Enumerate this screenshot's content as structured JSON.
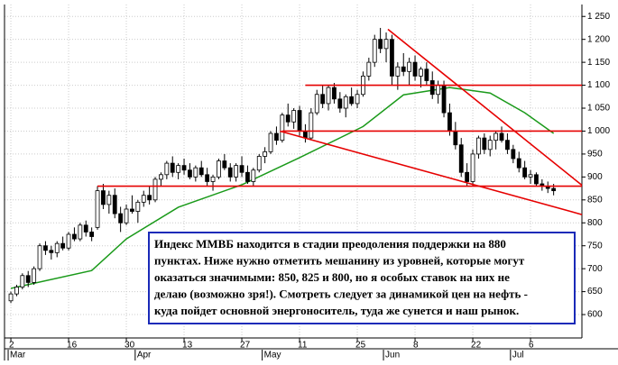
{
  "chart_data": {
    "type": "candlestick",
    "categories": [
      "2",
      null,
      null,
      null,
      null,
      null,
      null,
      null,
      null,
      null,
      "16",
      null,
      null,
      null,
      null,
      null,
      null,
      null,
      null,
      null,
      "30",
      null,
      null,
      null,
      null,
      null,
      null,
      null,
      null,
      null,
      "13",
      null,
      null,
      null,
      null,
      null,
      null,
      null,
      null,
      null,
      "27",
      null,
      null,
      null,
      null,
      null,
      null,
      null,
      null,
      null,
      "11",
      null,
      null,
      null,
      null,
      null,
      null,
      null,
      null,
      null,
      "25",
      null,
      null,
      null,
      null,
      null,
      null,
      null,
      null,
      null,
      "8",
      null,
      null,
      null,
      null,
      null,
      null,
      null,
      null,
      null,
      "22",
      null,
      null,
      null,
      null,
      null,
      null,
      null,
      null,
      null,
      "6",
      null,
      null,
      null,
      null
    ],
    "months": [
      {
        "label": "Mar",
        "index": 0
      },
      {
        "label": "Apr",
        "index": 22
      },
      {
        "label": "May",
        "index": 44
      },
      {
        "label": "Jun",
        "index": 65
      },
      {
        "label": "Jul",
        "index": 87
      }
    ],
    "candles": [
      [
        630,
        650,
        625,
        645
      ],
      [
        645,
        665,
        640,
        660
      ],
      [
        660,
        690,
        655,
        685
      ],
      [
        685,
        695,
        660,
        670
      ],
      [
        670,
        705,
        665,
        700
      ],
      [
        700,
        755,
        695,
        750
      ],
      [
        750,
        760,
        730,
        740
      ],
      [
        740,
        750,
        720,
        735
      ],
      [
        735,
        760,
        725,
        755
      ],
      [
        755,
        770,
        740,
        745
      ],
      [
        745,
        780,
        740,
        775
      ],
      [
        775,
        790,
        760,
        765
      ],
      [
        765,
        800,
        760,
        795
      ],
      [
        795,
        805,
        770,
        780
      ],
      [
        780,
        790,
        760,
        770
      ],
      [
        790,
        880,
        785,
        870
      ],
      [
        870,
        885,
        830,
        840
      ],
      [
        840,
        870,
        820,
        860
      ],
      [
        860,
        875,
        810,
        820
      ],
      [
        820,
        835,
        780,
        800
      ],
      [
        800,
        840,
        795,
        830
      ],
      [
        830,
        860,
        820,
        825
      ],
      [
        825,
        850,
        800,
        845
      ],
      [
        845,
        870,
        835,
        860
      ],
      [
        860,
        880,
        840,
        850
      ],
      [
        850,
        900,
        845,
        895
      ],
      [
        895,
        910,
        880,
        905
      ],
      [
        905,
        935,
        895,
        930
      ],
      [
        930,
        945,
        900,
        910
      ],
      [
        910,
        930,
        895,
        925
      ],
      [
        925,
        940,
        905,
        915
      ],
      [
        915,
        930,
        895,
        900
      ],
      [
        900,
        925,
        890,
        920
      ],
      [
        920,
        935,
        900,
        905
      ],
      [
        905,
        920,
        880,
        890
      ],
      [
        890,
        905,
        870,
        900
      ],
      [
        900,
        940,
        895,
        935
      ],
      [
        935,
        950,
        915,
        920
      ],
      [
        920,
        930,
        890,
        900
      ],
      [
        900,
        930,
        890,
        925
      ],
      [
        925,
        945,
        900,
        910
      ],
      [
        910,
        925,
        885,
        890
      ],
      [
        890,
        920,
        880,
        915
      ],
      [
        915,
        950,
        910,
        945
      ],
      [
        945,
        965,
        930,
        955
      ],
      [
        955,
        1000,
        950,
        995
      ],
      [
        995,
        1010,
        970,
        980
      ],
      [
        980,
        1040,
        975,
        1035
      ],
      [
        1035,
        1060,
        1010,
        1020
      ],
      [
        1020,
        1050,
        1005,
        1045
      ],
      [
        1045,
        1055,
        990,
        1000
      ],
      [
        1000,
        1015,
        975,
        985
      ],
      [
        985,
        1050,
        980,
        1040
      ],
      [
        1040,
        1090,
        1035,
        1080
      ],
      [
        1080,
        1100,
        1050,
        1060
      ],
      [
        1060,
        1100,
        1045,
        1095
      ],
      [
        1095,
        1105,
        1060,
        1070
      ],
      [
        1070,
        1085,
        1040,
        1050
      ],
      [
        1050,
        1080,
        1030,
        1075
      ],
      [
        1075,
        1095,
        1055,
        1060
      ],
      [
        1060,
        1090,
        1050,
        1080
      ],
      [
        1080,
        1130,
        1075,
        1120
      ],
      [
        1120,
        1160,
        1110,
        1150
      ],
      [
        1150,
        1210,
        1140,
        1200
      ],
      [
        1200,
        1225,
        1170,
        1180
      ],
      [
        1180,
        1215,
        1150,
        1200
      ],
      [
        1200,
        1210,
        1100,
        1120
      ],
      [
        1120,
        1150,
        1090,
        1140
      ],
      [
        1140,
        1170,
        1120,
        1130
      ],
      [
        1130,
        1160,
        1100,
        1150
      ],
      [
        1150,
        1165,
        1110,
        1120
      ],
      [
        1120,
        1140,
        1095,
        1135
      ],
      [
        1135,
        1150,
        1100,
        1110
      ],
      [
        1110,
        1130,
        1070,
        1080
      ],
      [
        1080,
        1110,
        1060,
        1100
      ],
      [
        1100,
        1110,
        1030,
        1040
      ],
      [
        1040,
        1060,
        990,
        1000
      ],
      [
        1000,
        1020,
        960,
        970
      ],
      [
        970,
        985,
        900,
        910
      ],
      [
        910,
        930,
        880,
        890
      ],
      [
        890,
        960,
        880,
        950
      ],
      [
        950,
        990,
        940,
        985
      ],
      [
        985,
        995,
        950,
        960
      ],
      [
        960,
        990,
        945,
        980
      ],
      [
        980,
        1000,
        960,
        995
      ],
      [
        995,
        1010,
        975,
        980
      ],
      [
        980,
        995,
        950,
        960
      ],
      [
        960,
        970,
        930,
        940
      ],
      [
        940,
        955,
        910,
        920
      ],
      [
        920,
        935,
        895,
        900
      ],
      [
        900,
        915,
        885,
        905
      ],
      [
        905,
        910,
        880,
        885
      ],
      [
        885,
        895,
        870,
        880
      ],
      [
        880,
        890,
        865,
        875
      ],
      [
        875,
        885,
        860,
        870
      ]
    ],
    "moving_average": {
      "color": "#1a9a1a",
      "x": [
        0,
        14,
        20,
        29,
        40,
        50,
        61,
        68,
        76,
        83,
        89,
        94
      ],
      "values": [
        657,
        696,
        765,
        834,
        883,
        942,
        1010,
        1079,
        1095,
        1083,
        1040,
        995
      ]
    },
    "trend_lines": [
      {
        "color": "#e60000",
        "x": [
          15,
          98.9
        ],
        "values": [
          880,
          880
        ]
      },
      {
        "color": "#e60000",
        "x": [
          47,
          98.9
        ],
        "values": [
          1000,
          1000
        ]
      },
      {
        "color": "#e60000",
        "x": [
          51,
          98.9
        ],
        "values": [
          1100,
          1100
        ]
      },
      {
        "color": "#e60000",
        "x": [
          65.3,
          98.9
        ],
        "values": [
          1222,
          882
        ]
      },
      {
        "color": "#e60000",
        "x": [
          46.6,
          98.9
        ],
        "values": [
          1000,
          818
        ]
      }
    ],
    "annotation": [
      "Индекс ММВБ находится в стадии преодоления поддержки на 880",
      "пунктах. Ниже нужно отметить мешанину из уровней, которые могут",
      "оказаться значимыми: 850, 825 и 800, но я особых ставок на них не",
      "делаю (возможно зря!). Смотреть следует за динамикой цен на нефть -",
      "куда пойдет основной энергоноситель, туда же сунется и наш рынок."
    ],
    "xlim": [
      -1.1,
      98.9
    ],
    "ylim": [
      549,
      1276
    ],
    "yticks": [
      600,
      650,
      700,
      750,
      800,
      850,
      900,
      950,
      {
        "value": 1000,
        "label": "1 000"
      },
      {
        "value": 1050,
        "label": "1 050"
      },
      {
        "value": 1100,
        "label": "1 100"
      },
      {
        "value": 1150,
        "label": "1 150"
      },
      {
        "value": 1200,
        "label": "1 200"
      },
      {
        "value": 1250,
        "label": "1 250"
      }
    ],
    "grid": true
  }
}
